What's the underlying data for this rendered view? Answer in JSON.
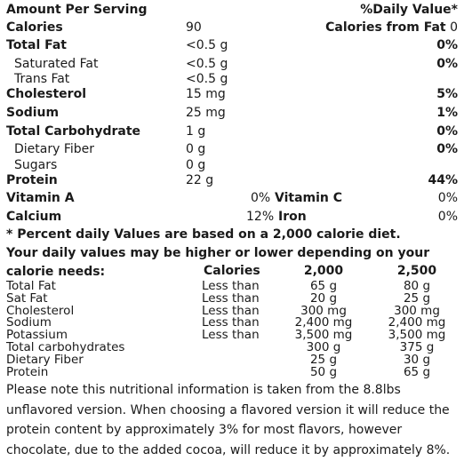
{
  "header": {
    "left": "Amount Per Serving",
    "right": "%Daily Value*"
  },
  "calories": {
    "label": "Calories",
    "value": "90",
    "fat_label": "Calories from Fat",
    "fat_value": "0"
  },
  "nutrients": [
    {
      "label": "Total Fat",
      "value": "<0.5 g",
      "pct": "0%"
    },
    {
      "label": "Saturated Fat",
      "value": "<0.5 g",
      "pct": "0%"
    },
    {
      "label": "Trans Fat",
      "value": "<0.5 g",
      "pct": ""
    },
    {
      "label": "Cholesterol",
      "value": "15 mg",
      "pct": "5%"
    },
    {
      "label": "Sodium",
      "value": "25 mg",
      "pct": "1%"
    },
    {
      "label": "Total Carbohydrate",
      "value": "1 g",
      "pct": "0%"
    },
    {
      "label": "Dietary Fiber",
      "value": "0 g",
      "pct": "0%"
    },
    {
      "label": "Sugars",
      "value": "0 g",
      "pct": ""
    },
    {
      "label": "Protein",
      "value": "22 g",
      "pct": "44%"
    }
  ],
  "vitamins": [
    {
      "left_label": "Vitamin A",
      "left_pct": "0%",
      "right_label": "Vitamin C",
      "right_pct": "0%"
    },
    {
      "left_label": "Calcium",
      "left_pct": "12%",
      "right_label": "Iron",
      "right_pct": "0%"
    }
  ],
  "footnote": "* Percent daily Values are based on a 2,000 calorie diet. Your daily values may be higher or lower depending on your calorie needs:",
  "table": {
    "headers": [
      "Calories",
      "2,000",
      "2,500"
    ],
    "rows": [
      {
        "name": "Total Fat",
        "cond": "Less than",
        "v2000": "65 g",
        "v2500": "80 g"
      },
      {
        "name": "Sat Fat",
        "cond": "Less than",
        "v2000": "20 g",
        "v2500": "25 g"
      },
      {
        "name": "Cholesterol",
        "cond": "Less than",
        "v2000": "300 mg",
        "v2500": "300 mg"
      },
      {
        "name": "Sodium",
        "cond": "Less than",
        "v2000": "2,400 mg",
        "v2500": "2,400 mg"
      },
      {
        "name": "Potassium",
        "cond": "Less than",
        "v2000": "3,500 mg",
        "v2500": "3,500 mg"
      },
      {
        "name": "Total carbohydrates",
        "cond": "",
        "v2000": "300 g",
        "v2500": "375 g"
      },
      {
        "name": "Dietary Fiber",
        "cond": "",
        "v2000": "25 g",
        "v2500": "30 g"
      },
      {
        "name": "Protein",
        "cond": "",
        "v2000": "50 g",
        "v2500": "65 g"
      }
    ]
  },
  "disclaimer": "Please note this nutritional information is taken from the 8.8lbs unflavored version. When choosing a flavored version it will reduce the protein content by approximately 3% for most flavors, however chocolate, due to the added cocoa, will reduce it by approximately 8%."
}
